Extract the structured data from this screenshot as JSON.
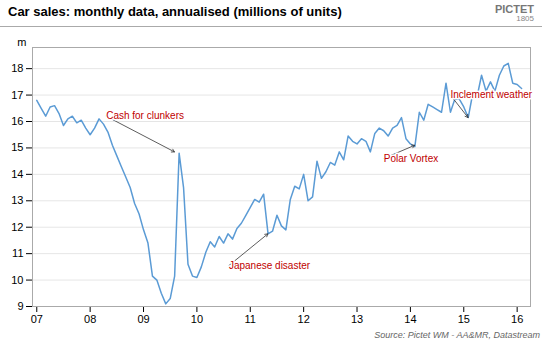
{
  "chart_data": {
    "type": "line",
    "title": "Car sales: monthly data, annualised (millions of units)",
    "source": "Source: Pictet WM - AA&MR, Datastream",
    "logo": [
      "PICTET",
      "1805"
    ],
    "ylabel": "m",
    "color": "#5b9bd5",
    "grid": true,
    "xlim": [
      2006.92,
      2016.25
    ],
    "ylim": [
      9,
      18.8
    ],
    "xticks": [
      {
        "value": 2007,
        "label": "07"
      },
      {
        "value": 2008,
        "label": "08"
      },
      {
        "value": 2009,
        "label": "09"
      },
      {
        "value": 2010,
        "label": "10"
      },
      {
        "value": 2011,
        "label": "11"
      },
      {
        "value": 2012,
        "label": "12"
      },
      {
        "value": 2013,
        "label": "13"
      },
      {
        "value": 2014,
        "label": "14"
      },
      {
        "value": 2015,
        "label": "15"
      },
      {
        "value": 2016,
        "label": "16"
      }
    ],
    "yticks": [
      9,
      10,
      11,
      12,
      13,
      14,
      15,
      16,
      17,
      18
    ],
    "annotations": [
      {
        "text": "Cash for clunkers",
        "x": 2009.58,
        "y": 14.85,
        "tx": 2008.3,
        "ty": 16.2,
        "color": "#c00000"
      },
      {
        "text": "Japanese disaster",
        "x": 2011.33,
        "y": 11.75,
        "tx": 2010.6,
        "ty": 10.55,
        "color": "#c00000"
      },
      {
        "text": "Polar Vortex",
        "x": 2014.08,
        "y": 15.1,
        "tx": 2013.5,
        "ty": 14.6,
        "color": "#c00000"
      },
      {
        "text": "Inclement weather",
        "x": 2015.08,
        "y": 16.15,
        "tx": 2014.75,
        "ty": 17.0,
        "color": "#c00000"
      }
    ],
    "x": [
      2007.0,
      2007.083,
      2007.167,
      2007.25,
      2007.333,
      2007.417,
      2007.5,
      2007.583,
      2007.667,
      2007.75,
      2007.833,
      2007.917,
      2008.0,
      2008.083,
      2008.167,
      2008.25,
      2008.333,
      2008.417,
      2008.5,
      2008.583,
      2008.667,
      2008.75,
      2008.833,
      2008.917,
      2009.0,
      2009.083,
      2009.167,
      2009.25,
      2009.333,
      2009.417,
      2009.5,
      2009.583,
      2009.667,
      2009.75,
      2009.833,
      2009.917,
      2010.0,
      2010.083,
      2010.167,
      2010.25,
      2010.333,
      2010.417,
      2010.5,
      2010.583,
      2010.667,
      2010.75,
      2010.833,
      2010.917,
      2011.0,
      2011.083,
      2011.167,
      2011.25,
      2011.333,
      2011.417,
      2011.5,
      2011.583,
      2011.667,
      2011.75,
      2011.833,
      2011.917,
      2012.0,
      2012.083,
      2012.167,
      2012.25,
      2012.333,
      2012.417,
      2012.5,
      2012.583,
      2012.667,
      2012.75,
      2012.833,
      2012.917,
      2013.0,
      2013.083,
      2013.167,
      2013.25,
      2013.333,
      2013.417,
      2013.5,
      2013.583,
      2013.667,
      2013.75,
      2013.833,
      2013.917,
      2014.0,
      2014.083,
      2014.167,
      2014.25,
      2014.333,
      2014.417,
      2014.5,
      2014.583,
      2014.667,
      2014.75,
      2014.833,
      2014.917,
      2015.0,
      2015.083,
      2015.167,
      2015.25,
      2015.333,
      2015.417,
      2015.5,
      2015.583,
      2015.667,
      2015.75,
      2015.833,
      2015.917,
      2016.0,
      2016.083
    ],
    "values": [
      16.8,
      16.5,
      16.2,
      16.55,
      16.6,
      16.3,
      15.85,
      16.1,
      16.2,
      15.95,
      16.05,
      15.75,
      15.5,
      15.75,
      16.1,
      15.9,
      15.6,
      15.1,
      14.7,
      14.3,
      13.9,
      13.5,
      12.9,
      12.5,
      11.9,
      11.4,
      10.15,
      10.0,
      9.5,
      9.1,
      9.3,
      10.15,
      14.8,
      13.5,
      10.6,
      10.15,
      10.1,
      10.5,
      11.05,
      11.45,
      11.25,
      11.65,
      11.4,
      11.75,
      11.55,
      11.95,
      12.15,
      12.45,
      12.75,
      13.05,
      12.95,
      13.25,
      11.75,
      11.85,
      12.45,
      12.05,
      11.9,
      13.05,
      13.55,
      13.45,
      14.0,
      13.0,
      13.15,
      14.5,
      13.85,
      14.1,
      14.45,
      14.35,
      14.85,
      14.55,
      15.45,
      15.25,
      15.15,
      15.35,
      15.25,
      14.85,
      15.55,
      15.75,
      15.65,
      15.45,
      15.75,
      15.85,
      16.15,
      15.35,
      15.15,
      15.05,
      16.35,
      16.05,
      16.65,
      16.55,
      16.45,
      16.35,
      17.45,
      16.35,
      16.85,
      16.85,
      16.55,
      16.15,
      17.05,
      16.95,
      17.75,
      17.15,
      17.5,
      17.15,
      17.75,
      18.1,
      18.2,
      17.45,
      17.4,
      17.25
    ]
  }
}
